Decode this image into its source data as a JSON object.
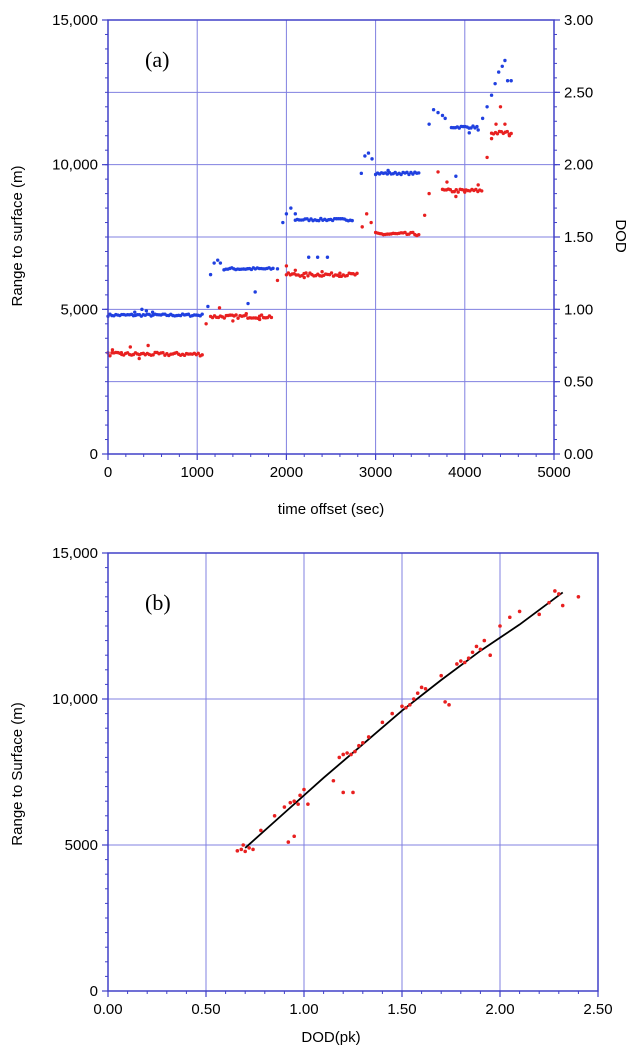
{
  "colors": {
    "grid": "#8080e0",
    "frame": "#4040c8",
    "blue_series": "#2040e0",
    "red_series": "#e82020",
    "fit_line": "#000000"
  },
  "chart_data": [
    {
      "type": "scatter",
      "panel_label": "(a)",
      "xlabel": "time offset (sec)",
      "ylabel": "Range to surface (m)",
      "y2label": "DOD",
      "xlim": [
        0,
        5000
      ],
      "ylim": [
        0,
        15000
      ],
      "y2lim": [
        0,
        3.0
      ],
      "grid": true,
      "xticks": [
        "0",
        "1000",
        "2000",
        "3000",
        "4000",
        "5000"
      ],
      "yticks": [
        "0",
        "5,000",
        "10,000",
        "15,000"
      ],
      "y2ticks": [
        "0.00",
        "0.50",
        "1.00",
        "1.50",
        "2.00",
        "2.50",
        "3.00"
      ],
      "series": [
        {
          "axis": "left",
          "color": "blue",
          "segments": [
            {
              "x": [
                0,
                1060
              ],
              "y": 4800
            },
            {
              "x": [
                1300,
                1850
              ],
              "y": 6400
            },
            {
              "x": [
                2100,
                2750
              ],
              "y": 8100
            },
            {
              "x": [
                3000,
                3500
              ],
              "y": 9700
            },
            {
              "x": [
                3850,
                4150
              ],
              "y": 11300
            }
          ],
          "points": [
            [
              300,
              4900
            ],
            [
              380,
              5000
            ],
            [
              430,
              4950
            ],
            [
              500,
              4900
            ],
            [
              1120,
              5100
            ],
            [
              1150,
              6200
            ],
            [
              1190,
              6600
            ],
            [
              1230,
              6700
            ],
            [
              1260,
              6600
            ],
            [
              1570,
              5200
            ],
            [
              1650,
              5600
            ],
            [
              1900,
              6400
            ],
            [
              1960,
              8000
            ],
            [
              2000,
              8300
            ],
            [
              2050,
              8500
            ],
            [
              2100,
              8300
            ],
            [
              2250,
              6800
            ],
            [
              2350,
              6800
            ],
            [
              2460,
              6800
            ],
            [
              2840,
              9700
            ],
            [
              2880,
              10300
            ],
            [
              2920,
              10400
            ],
            [
              2960,
              10200
            ],
            [
              3140,
              9800
            ],
            [
              3600,
              11400
            ],
            [
              3650,
              11900
            ],
            [
              3700,
              11800
            ],
            [
              3750,
              11700
            ],
            [
              3780,
              11600
            ],
            [
              3900,
              9600
            ],
            [
              4050,
              11100
            ],
            [
              4150,
              11200
            ],
            [
              4200,
              11600
            ],
            [
              4250,
              12000
            ],
            [
              4300,
              12400
            ],
            [
              4340,
              12800
            ],
            [
              4380,
              13200
            ],
            [
              4420,
              13400
            ],
            [
              4450,
              13600
            ],
            [
              4480,
              12900
            ],
            [
              4520,
              12900
            ]
          ]
        },
        {
          "axis": "right",
          "color": "red",
          "segments": [
            {
              "x": [
                0,
                1060
              ],
              "y": 0.69
            },
            {
              "x": [
                1150,
                1850
              ],
              "y": 0.95
            },
            {
              "x": [
                2000,
                2800
              ],
              "y": 1.24
            },
            {
              "x": [
                3000,
                3500
              ],
              "y": 1.52
            },
            {
              "x": [
                3750,
                4200
              ],
              "y": 1.82
            },
            {
              "x": [
                4300,
                4520
              ],
              "y": 2.22
            }
          ],
          "points": [
            [
              50,
              0.72
            ],
            [
              150,
              0.7
            ],
            [
              250,
              0.74
            ],
            [
              350,
              0.66
            ],
            [
              450,
              0.75
            ],
            [
              1100,
              0.9
            ],
            [
              1250,
              1.01
            ],
            [
              1400,
              0.92
            ],
            [
              1550,
              0.97
            ],
            [
              1700,
              0.93
            ],
            [
              1900,
              1.2
            ],
            [
              2000,
              1.3
            ],
            [
              2100,
              1.27
            ],
            [
              2200,
              1.22
            ],
            [
              2400,
              1.26
            ],
            [
              2600,
              1.25
            ],
            [
              2850,
              1.57
            ],
            [
              2900,
              1.66
            ],
            [
              2950,
              1.6
            ],
            [
              3550,
              1.65
            ],
            [
              3600,
              1.8
            ],
            [
              3700,
              1.95
            ],
            [
              3800,
              1.88
            ],
            [
              3900,
              1.78
            ],
            [
              4000,
              1.81
            ],
            [
              4150,
              1.86
            ],
            [
              4250,
              2.05
            ],
            [
              4300,
              2.18
            ],
            [
              4350,
              2.28
            ],
            [
              4400,
              2.4
            ],
            [
              4450,
              2.28
            ],
            [
              4500,
              2.2
            ]
          ]
        }
      ]
    },
    {
      "type": "scatter",
      "panel_label": "(b)",
      "xlabel": "DOD(pk)",
      "ylabel": "Range to Surface (m)",
      "xlim": [
        0,
        2.5
      ],
      "ylim": [
        0,
        15000
      ],
      "grid": true,
      "xticks": [
        "0.00",
        "0.50",
        "1.00",
        "1.50",
        "2.00",
        "2.50"
      ],
      "yticks": [
        "0",
        "5000",
        "10,000",
        "15,000"
      ],
      "points_color": "red",
      "points": [
        [
          0.66,
          4800
        ],
        [
          0.68,
          4850
        ],
        [
          0.7,
          4780
        ],
        [
          0.72,
          4900
        ],
        [
          0.69,
          5000
        ],
        [
          0.74,
          4850
        ],
        [
          0.78,
          5500
        ],
        [
          0.85,
          6000
        ],
        [
          0.9,
          6300
        ],
        [
          0.93,
          6450
        ],
        [
          0.95,
          6500
        ],
        [
          0.97,
          6400
        ],
        [
          0.98,
          6700
        ],
        [
          1.0,
          6900
        ],
        [
          0.92,
          5100
        ],
        [
          0.95,
          5300
        ],
        [
          1.02,
          6400
        ],
        [
          1.18,
          8000
        ],
        [
          1.2,
          8100
        ],
        [
          1.22,
          8150
        ],
        [
          1.24,
          8100
        ],
        [
          1.26,
          8200
        ],
        [
          1.28,
          8400
        ],
        [
          1.3,
          8500
        ],
        [
          1.15,
          7200
        ],
        [
          1.2,
          6800
        ],
        [
          1.25,
          6800
        ],
        [
          1.33,
          8700
        ],
        [
          1.4,
          9200
        ],
        [
          1.45,
          9500
        ],
        [
          1.5,
          9750
        ],
        [
          1.52,
          9700
        ],
        [
          1.54,
          9800
        ],
        [
          1.56,
          10000
        ],
        [
          1.58,
          10200
        ],
        [
          1.6,
          10400
        ],
        [
          1.62,
          10350
        ],
        [
          1.72,
          9900
        ],
        [
          1.74,
          9800
        ],
        [
          1.7,
          10800
        ],
        [
          1.78,
          11200
        ],
        [
          1.8,
          11300
        ],
        [
          1.82,
          11250
        ],
        [
          1.84,
          11400
        ],
        [
          1.86,
          11600
        ],
        [
          1.88,
          11800
        ],
        [
          1.9,
          11700
        ],
        [
          1.92,
          12000
        ],
        [
          1.95,
          11500
        ],
        [
          2.0,
          12500
        ],
        [
          2.05,
          12800
        ],
        [
          2.1,
          13000
        ],
        [
          2.2,
          12900
        ],
        [
          2.25,
          13300
        ],
        [
          2.3,
          13600
        ],
        [
          2.32,
          13200
        ],
        [
          2.4,
          13500
        ],
        [
          2.28,
          13700
        ]
      ],
      "fit_line": [
        [
          0.7,
          4900
        ],
        [
          0.9,
          6100
        ],
        [
          1.1,
          7300
        ],
        [
          1.3,
          8450
        ],
        [
          1.5,
          9600
        ],
        [
          1.7,
          10650
        ],
        [
          1.9,
          11650
        ],
        [
          2.1,
          12550
        ],
        [
          2.32,
          13650
        ]
      ]
    }
  ]
}
